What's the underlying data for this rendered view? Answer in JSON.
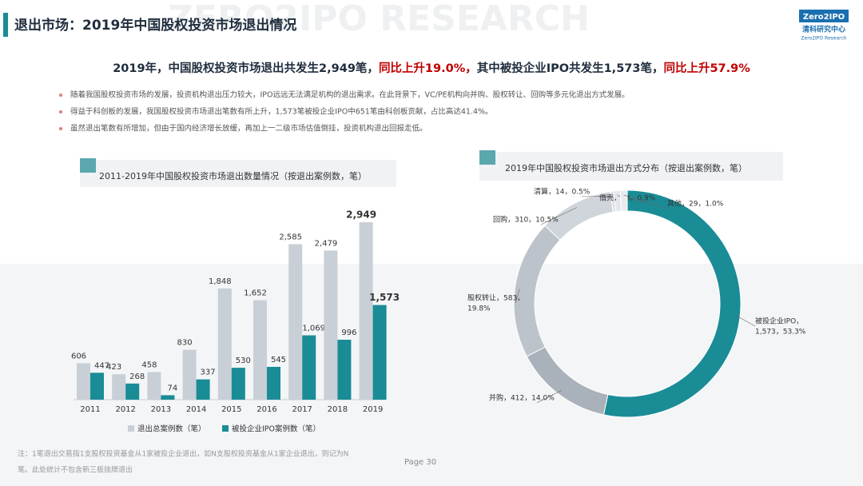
{
  "header": {
    "title": "退出市场：2019年中国股权投资市场退出情况",
    "logo": "Zero2IPO",
    "logo_cn": "清科研究中心",
    "logo_en": "Zero2IPO Research",
    "watermark": "ZERO2IPO RESEARCH"
  },
  "headline": [
    "2019年，中国股权投资市场退出共发生2,949笔，",
    "同比上升19.0%，",
    "其中被投企业IPO共发生1,573笔，",
    "同比上升57.9%"
  ],
  "bullets": [
    "随着我国股权投资市场的发展，投资机构退出压力较大，IPO远远无法满足机构的退出需求。在此背景下，VC/PE机构向并购、股权转让、回购等多元化退出方式发展。",
    "得益于科创板的发展，我国股权投资市场退出笔数有所上升，1,573笔被投企业IPO中651笔由科创板贡献，占比高达41.4%。",
    "虽然退出笔数有所增加，但由于国内经济增长放缓，再加上一二级市场估值倒挂，投资机构退出回报走低。"
  ],
  "chart_data": [
    {
      "type": "bar",
      "title": "2011-2019年中国股权投资市场退出数量情况（按退出案例数，笔）",
      "categories": [
        "2011",
        "2012",
        "2013",
        "2014",
        "2015",
        "2016",
        "2017",
        "2018",
        "2019"
      ],
      "series": [
        {
          "name": "退出总案例数（笔）",
          "color": "#c8cfd7",
          "values": [
            606,
            423,
            458,
            830,
            1848,
            1652,
            2585,
            2479,
            2949
          ],
          "value_labels": [
            "606",
            "423",
            "458",
            "830",
            "1,848",
            "1,652",
            "2,585",
            "2,479",
            "2,949"
          ]
        },
        {
          "name": "被投企业IPO案例数（笔）",
          "color": "#1a8c96",
          "values": [
            447,
            268,
            74,
            337,
            530,
            545,
            1069,
            996,
            1573
          ],
          "value_labels": [
            "447",
            "268",
            "74",
            "337",
            "530",
            "545",
            "1,069",
            "996",
            "1,573"
          ]
        }
      ]
    },
    {
      "type": "donut",
      "title": "2019年中国股权投资市场退出方式分布（按退出案例数，笔）",
      "labels": [
        [
          "被投企业IPO，",
          "1,573，53.3%"
        ],
        [
          "并购，412，14.0%"
        ],
        [
          "股权转让，583，",
          "19.8%"
        ],
        [
          "回购，310，10.5%"
        ],
        [
          "清算，14，0.5%"
        ],
        [
          "借壳，28，0.9%"
        ],
        [
          "其他，29，1.0%"
        ]
      ],
      "values": [
        1573,
        412,
        583,
        310,
        14,
        28,
        29
      ],
      "colors": [
        "#1a8c96",
        "#a9b1ba",
        "#bcc3cb",
        "#cfd5db",
        "#dde1e6",
        "#e3e7eb",
        "#e8ebee"
      ]
    }
  ],
  "note": [
    "注：1笔退出交易指1支股权投资基金从1家被投企业退出，如N支股权投资基金从1家企业退出，则记为N",
    "笔。此处统计不包含新三板挂牌退出"
  ],
  "page": "Page 30"
}
